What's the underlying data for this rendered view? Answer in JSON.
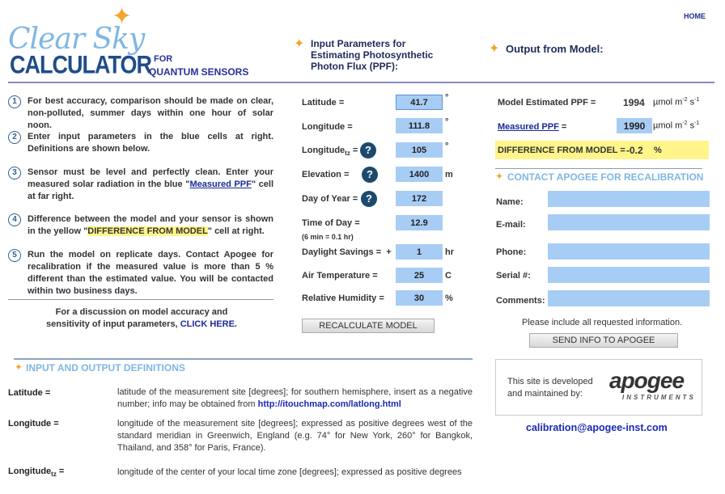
{
  "nav": {
    "home": "HOME"
  },
  "logo": {
    "line1": "Clear Sky",
    "line2": "CALCULATOR"
  },
  "header": {
    "for": "FOR",
    "subtitle": "QUANTUM SENSORS",
    "input_title": "Input Parameters for Estimating Photosynthetic Photon Flux (PPF):",
    "output_title": "Output from Model:"
  },
  "steps": [
    {
      "num": "1",
      "text": "For best accuracy, comparison should be made on clear, non-polluted, summer days within one hour of solar noon."
    },
    {
      "num": "2",
      "text": "Enter input parameters in the blue cells at right. Definitions are shown below."
    },
    {
      "num": "3",
      "pre": "Sensor must be level and perfectly clean. Enter your measured solar radiation in the blue \"",
      "link": "Measured PPF",
      "post": "\" cell at far right."
    },
    {
      "num": "4",
      "pre": "Difference between the model and your sensor is shown in the yellow \"",
      "hl": "DIFFERENCE FROM MODEL",
      "post": "\" cell at right."
    },
    {
      "num": "5",
      "text": "Run the model on replicate days. Contact Apogee for recalibration if the measured value is more than 5 % different than the estimated value. You will be contacted within two business days."
    }
  ],
  "discussion": {
    "text": "For a discussion on model accuracy and sensitivity of input parameters,",
    "link": "CLICK HERE",
    "end": "."
  },
  "inputs": [
    {
      "label": "Latitude =",
      "value": "41.7",
      "unit": "°"
    },
    {
      "label": "Longitude =",
      "value": "111.8",
      "unit": "°"
    },
    {
      "label": "Longitude",
      "sub": "tz",
      "eq": " =",
      "value": "105",
      "unit": "°",
      "help": "?"
    },
    {
      "label": "Elevation =",
      "value": "1400",
      "unit": "m",
      "help": "?"
    },
    {
      "label": "Day of Year =",
      "value": "172",
      "unit": "",
      "help": "?"
    },
    {
      "label": "Time of Day =",
      "note": "(6 min = 0.1 hr)",
      "value": "12.9",
      "unit": ""
    },
    {
      "label": "Daylight Savings =  +",
      "value": "1",
      "unit": "hr"
    },
    {
      "label": "Air Temperature =",
      "value": "25",
      "unit": "C"
    },
    {
      "label": "Relative Humidity =",
      "value": "30",
      "unit": "%"
    }
  ],
  "recalc": "RECALCULATE MODEL",
  "output": {
    "model_label": "Model Estimated PPF =",
    "model_value": "1994",
    "measured_label": "Measured PPF",
    "measured_eq": " =",
    "measured_value": "1990",
    "unit": "µmol m",
    "exp1": "-2",
    "unit2": " s",
    "exp2": "-1",
    "diff_label": "DIFFERENCE FROM MODEL =",
    "diff_value": "-0.2",
    "diff_unit": "%"
  },
  "contact": {
    "title": "CONTACT APOGEE FOR RECALIBRATION",
    "fields": [
      "Name:",
      "E-mail:",
      "Phone:",
      "Serial #:",
      "Comments:"
    ],
    "note": "Please include all requested information.",
    "send": "SEND INFO TO APOGEE"
  },
  "credit": {
    "text1": "This site is developed",
    "text2": "and maintained by:",
    "logo": "apogee",
    "logo_sub": "INSTRUMENTS",
    "email": "calibration@apogee-inst.com"
  },
  "definitions": {
    "title": "INPUT AND OUTPUT DEFINITIONS",
    "items": [
      {
        "term": "Latitude =",
        "text": "latitude of the measurement site [degrees]; for southern hemisphere, insert as a negative number; info may be obtained from ",
        "link": "http://itouchmap.com/latlong.html"
      },
      {
        "term": "Longitude =",
        "text": "longitude of the measurement site [degrees]; expressed as positive degrees west of the standard meridian in Greenwich, England (e.g. 74° for New York, 260° for Bangkok, Thailand, and 358° for Paris, France)."
      },
      {
        "term": "Longitude",
        "sub": "tz",
        "eq": " =",
        "text": "longitude of the center of your local time zone [degrees]; expressed as positive degrees"
      }
    ]
  },
  "colors": {
    "input_blue": "#a8cdf5",
    "highlight_yellow": "#fff58a",
    "heading_navy": "#1f2a5a",
    "accent_star": "#f3a530"
  }
}
